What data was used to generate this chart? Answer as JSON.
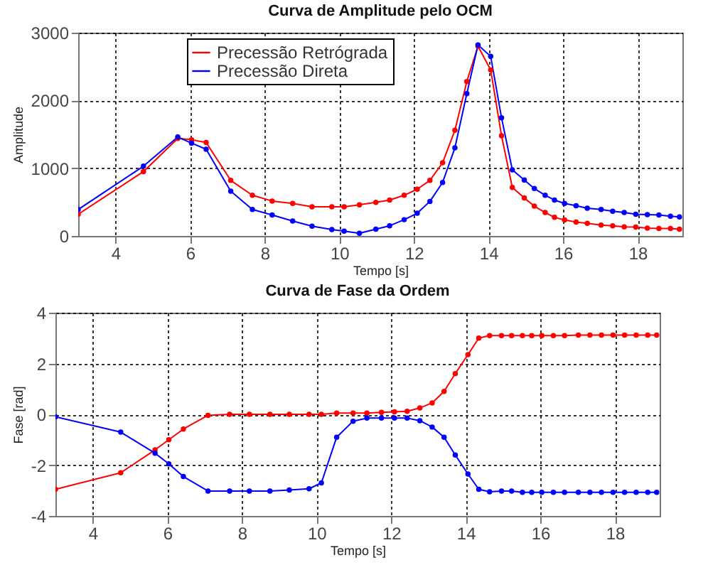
{
  "chart_data": [
    {
      "type": "line",
      "title": "Curva de Amplitude pelo OCM",
      "xlabel": "Tempo [s]",
      "ylabel": "Amplitude",
      "xlim": [
        3,
        19.2
      ],
      "xticks": [
        4,
        6,
        8,
        10,
        12,
        14,
        16,
        18
      ],
      "ylim": [
        0,
        3000
      ],
      "yticks": [
        0,
        1000,
        2000,
        3000
      ],
      "grid": true,
      "legend": "top",
      "marker": "circle",
      "line_style": "solid",
      "x": [
        3.0,
        4.75,
        5.67,
        6.04,
        6.43,
        7.09,
        7.67,
        8.2,
        8.75,
        9.27,
        9.8,
        10.13,
        10.54,
        10.98,
        11.35,
        11.74,
        12.09,
        12.43,
        12.77,
        13.1,
        13.42,
        13.72,
        14.06,
        14.35,
        14.64,
        14.96,
        15.23,
        15.52,
        15.77,
        16.04,
        16.35,
        16.65,
        17.02,
        17.33,
        17.64,
        17.95,
        18.26,
        18.57,
        18.88,
        19.12
      ],
      "series": [
        {
          "name": "Precessão Retrógrada",
          "color": "#ff0000",
          "values": [
            320,
            950,
            1440,
            1420,
            1380,
            820,
            600,
            515,
            480,
            430,
            430,
            430,
            460,
            495,
            530,
            600,
            690,
            820,
            1080,
            1560,
            2280,
            2800,
            2450,
            1480,
            715,
            560,
            440,
            345,
            275,
            235,
            205,
            185,
            160,
            150,
            135,
            130,
            115,
            110,
            110,
            100
          ]
        },
        {
          "name": "Precessão Direta",
          "color": "#0000ff",
          "values": [
            390,
            1030,
            1460,
            1370,
            1280,
            660,
            390,
            310,
            220,
            145,
            95,
            70,
            40,
            100,
            150,
            240,
            335,
            510,
            790,
            1300,
            2100,
            2820,
            2650,
            1745,
            975,
            825,
            700,
            600,
            530,
            480,
            445,
            410,
            390,
            365,
            345,
            320,
            315,
            310,
            290,
            280
          ]
        }
      ]
    },
    {
      "type": "line",
      "title": "Curva de Fase da Ordem",
      "xlabel": "Tempo [s]",
      "ylabel": "Fase [rad]",
      "xlim": [
        3,
        19.2
      ],
      "xticks": [
        4,
        6,
        8,
        10,
        12,
        14,
        16,
        18
      ],
      "ylim": [
        -4,
        4
      ],
      "yticks": [
        -4,
        -2,
        0,
        2,
        4
      ],
      "grid": true,
      "marker": "circle",
      "line_style": "solid",
      "x": [
        3.0,
        4.75,
        5.67,
        6.04,
        6.43,
        7.09,
        7.67,
        8.2,
        8.75,
        9.27,
        9.8,
        10.13,
        10.54,
        10.98,
        11.35,
        11.74,
        12.09,
        12.43,
        12.77,
        13.1,
        13.42,
        13.72,
        14.06,
        14.35,
        14.64,
        14.96,
        15.23,
        15.52,
        15.77,
        16.04,
        16.35,
        16.65,
        17.02,
        17.33,
        17.64,
        17.95,
        18.26,
        18.57,
        18.88,
        19.12
      ],
      "series": [
        {
          "color": "#ff0000",
          "values": [
            -2.95,
            -2.3,
            -1.4,
            -1.0,
            -0.58,
            -0.04,
            0,
            0,
            0,
            0,
            0,
            0,
            0.05,
            0.05,
            0.05,
            0.08,
            0.1,
            0.12,
            0.25,
            0.45,
            0.9,
            1.6,
            2.35,
            3.0,
            3.1,
            3.1,
            3.1,
            3.1,
            3.1,
            3.1,
            3.1,
            3.1,
            3.12,
            3.12,
            3.12,
            3.12,
            3.12,
            3.12,
            3.12,
            3.12
          ]
        },
        {
          "color": "#0000ff",
          "values": [
            -0.1,
            -0.7,
            -1.53,
            -1.95,
            -2.45,
            -3.02,
            -3.02,
            -3.02,
            -3.02,
            -2.98,
            -2.93,
            -2.7,
            -0.9,
            -0.27,
            -0.15,
            -0.15,
            -0.15,
            -0.15,
            -0.25,
            -0.5,
            -0.9,
            -1.6,
            -2.35,
            -2.95,
            -3.05,
            -3.02,
            -3.02,
            -3.07,
            -3.07,
            -3.07,
            -3.07,
            -3.07,
            -3.07,
            -3.07,
            -3.07,
            -3.07,
            -3.07,
            -3.07,
            -3.07,
            -3.07
          ]
        }
      ]
    }
  ]
}
